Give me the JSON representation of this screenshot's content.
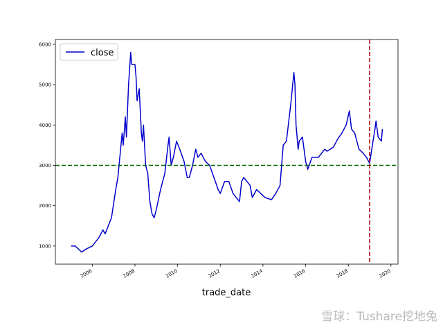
{
  "chart_data": {
    "type": "line",
    "xlabel": "trade_date",
    "x": [
      2005.0,
      2005.2,
      2005.4,
      2005.5,
      2005.7,
      2006.0,
      2006.3,
      2006.5,
      2006.6,
      2006.9,
      2007.1,
      2007.2,
      2007.4,
      2007.45,
      2007.55,
      2007.6,
      2007.7,
      2007.8,
      2007.85,
      2008.0,
      2008.05,
      2008.1,
      2008.2,
      2008.3,
      2008.35,
      2008.4,
      2008.5,
      2008.6,
      2008.7,
      2008.8,
      2008.9,
      2009.0,
      2009.2,
      2009.4,
      2009.55,
      2009.6,
      2009.7,
      2009.8,
      2009.95,
      2010.1,
      2010.3,
      2010.45,
      2010.55,
      2010.7,
      2010.85,
      2010.95,
      2011.1,
      2011.3,
      2011.5,
      2011.7,
      2011.9,
      2012.0,
      2012.2,
      2012.4,
      2012.6,
      2012.9,
      2013.0,
      2013.1,
      2013.4,
      2013.5,
      2013.7,
      2013.9,
      2014.1,
      2014.4,
      2014.6,
      2014.8,
      2014.95,
      2015.1,
      2015.3,
      2015.45,
      2015.5,
      2015.55,
      2015.65,
      2015.7,
      2015.85,
      2016.0,
      2016.1,
      2016.3,
      2016.6,
      2016.9,
      2017.0,
      2017.3,
      2017.5,
      2017.7,
      2017.9,
      2018.05,
      2018.15,
      2018.3,
      2018.5,
      2018.7,
      2018.85,
      2019.0,
      2019.1,
      2019.25,
      2019.3,
      2019.4,
      2019.55,
      2019.6
    ],
    "series": [
      {
        "name": "close",
        "color": "#0000cc",
        "values": [
          1000,
          1000,
          900,
          850,
          920,
          1000,
          1200,
          1400,
          1300,
          1700,
          2400,
          2700,
          3800,
          3500,
          4200,
          3700,
          5000,
          5800,
          5500,
          5500,
          5200,
          4600,
          4900,
          3800,
          3600,
          4000,
          3000,
          2800,
          2100,
          1800,
          1700,
          1900,
          2400,
          2800,
          3500,
          3700,
          3000,
          3200,
          3600,
          3400,
          3100,
          2700,
          2700,
          3000,
          3400,
          3200,
          3300,
          3100,
          3000,
          2700,
          2400,
          2300,
          2600,
          2600,
          2300,
          2100,
          2600,
          2700,
          2500,
          2200,
          2400,
          2300,
          2200,
          2150,
          2300,
          2500,
          3500,
          3600,
          4500,
          5300,
          5000,
          4000,
          3400,
          3600,
          3700,
          3100,
          2900,
          3200,
          3200,
          3400,
          3350,
          3450,
          3650,
          3800,
          4000,
          4350,
          3900,
          3800,
          3400,
          3300,
          3200,
          3050,
          3400,
          3900,
          4100,
          3700,
          3600,
          3900
        ]
      }
    ],
    "hlines": [
      {
        "value": 3000,
        "color": "#006400"
      }
    ],
    "vlines": [
      {
        "value": 2019.0,
        "color": "#aa0000"
      }
    ],
    "xlim": [
      2004.27,
      2020.33
    ],
    "ylim": [
      550,
      6120
    ],
    "xticks": [
      2006,
      2008,
      2010,
      2012,
      2014,
      2016,
      2018,
      2020
    ],
    "yticks": [
      1000,
      2000,
      3000,
      4000,
      5000,
      6000
    ],
    "legend": "upper left"
  },
  "watermark": "雪球：Tushare挖地兔"
}
